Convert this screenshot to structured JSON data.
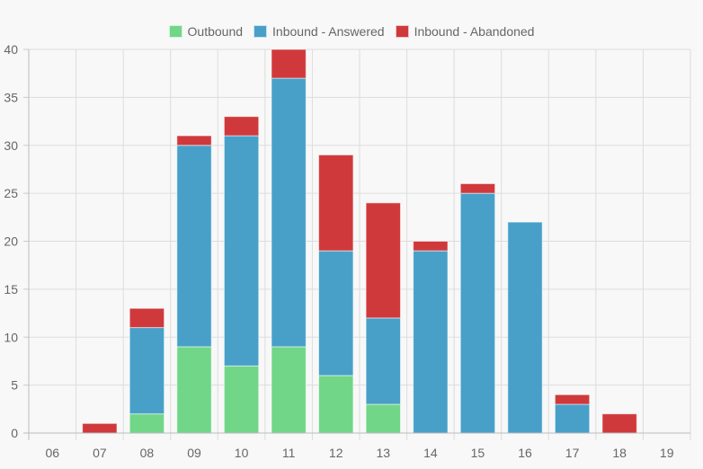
{
  "chart_data": {
    "type": "bar",
    "stacked": true,
    "title": "",
    "xlabel": "",
    "ylabel": "",
    "ylim": [
      0,
      40
    ],
    "yticks": [
      0,
      5,
      10,
      15,
      20,
      25,
      30,
      35,
      40
    ],
    "grid": true,
    "legend_position": "top-center",
    "categories": [
      "06",
      "07",
      "08",
      "09",
      "10",
      "11",
      "12",
      "13",
      "14",
      "15",
      "16",
      "17",
      "18",
      "19"
    ],
    "series": [
      {
        "name": "Outbound",
        "color": "#72d688",
        "values": [
          0,
          0,
          2,
          9,
          7,
          9,
          6,
          3,
          0,
          0,
          0,
          0,
          0,
          0
        ]
      },
      {
        "name": "Inbound - Answered",
        "color": "#48a0c9",
        "values": [
          0,
          0,
          9,
          21,
          24,
          28,
          13,
          9,
          19,
          25,
          22,
          3,
          0,
          0
        ]
      },
      {
        "name": "Inbound - Abandoned",
        "color": "#d0393b",
        "values": [
          0,
          1,
          2,
          1,
          2,
          3,
          10,
          12,
          1,
          1,
          0,
          1,
          2,
          0
        ]
      }
    ]
  }
}
